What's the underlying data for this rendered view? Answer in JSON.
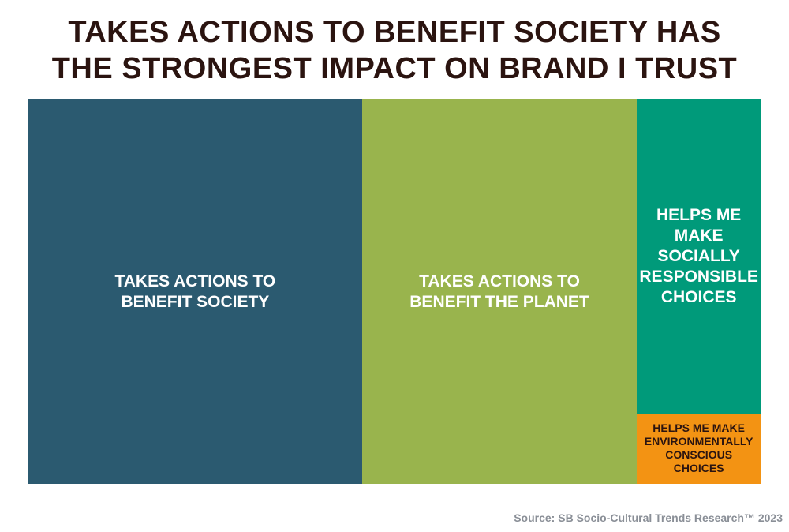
{
  "title_lines": [
    "TAKES ACTIONS TO BENEFIT SOCIETY HAS",
    "THE STRONGEST IMPACT ON BRAND I TRUST"
  ],
  "source": "Source: SB Socio-Cultural Trends Research™ 2023",
  "colors": {
    "title": "#2b1410",
    "source": "#8a8f97",
    "society": "#2b5a70",
    "planet": "#99b44d",
    "social_choices": "#009a7a",
    "env_choices": "#f39313"
  },
  "chart_data": {
    "type": "treemap",
    "title": "TAKES ACTIONS TO BENEFIT SOCIETY HAS THE STRONGEST IMPACT ON BRAND I TRUST",
    "value_unit": "share of total area (%)",
    "items": [
      {
        "label_lines": [
          "TAKES ACTIONS TO",
          "BENEFIT SOCIETY"
        ],
        "value": 45.6,
        "color": "#2b5a70",
        "text_color": "#ffffff",
        "text_size": "large"
      },
      {
        "label_lines": [
          "TAKES ACTIONS TO",
          "BENEFIT THE PLANET"
        ],
        "value": 37.6,
        "color": "#99b44d",
        "text_color": "#ffffff",
        "text_size": "large"
      },
      {
        "label_lines": [
          "HELPS ME",
          "MAKE",
          "SOCIALLY",
          "RESPONSIBLE",
          "CHOICES"
        ],
        "value": 13.8,
        "color": "#009a7a",
        "text_color": "#ffffff",
        "text_size": "large"
      },
      {
        "label_lines": [
          "HELPS ME MAKE",
          "ENVIRONMENTALLY",
          "CONSCIOUS CHOICES"
        ],
        "value": 3.1,
        "color": "#f39313",
        "text_color": "#2b1410",
        "text_size": "small"
      }
    ]
  }
}
